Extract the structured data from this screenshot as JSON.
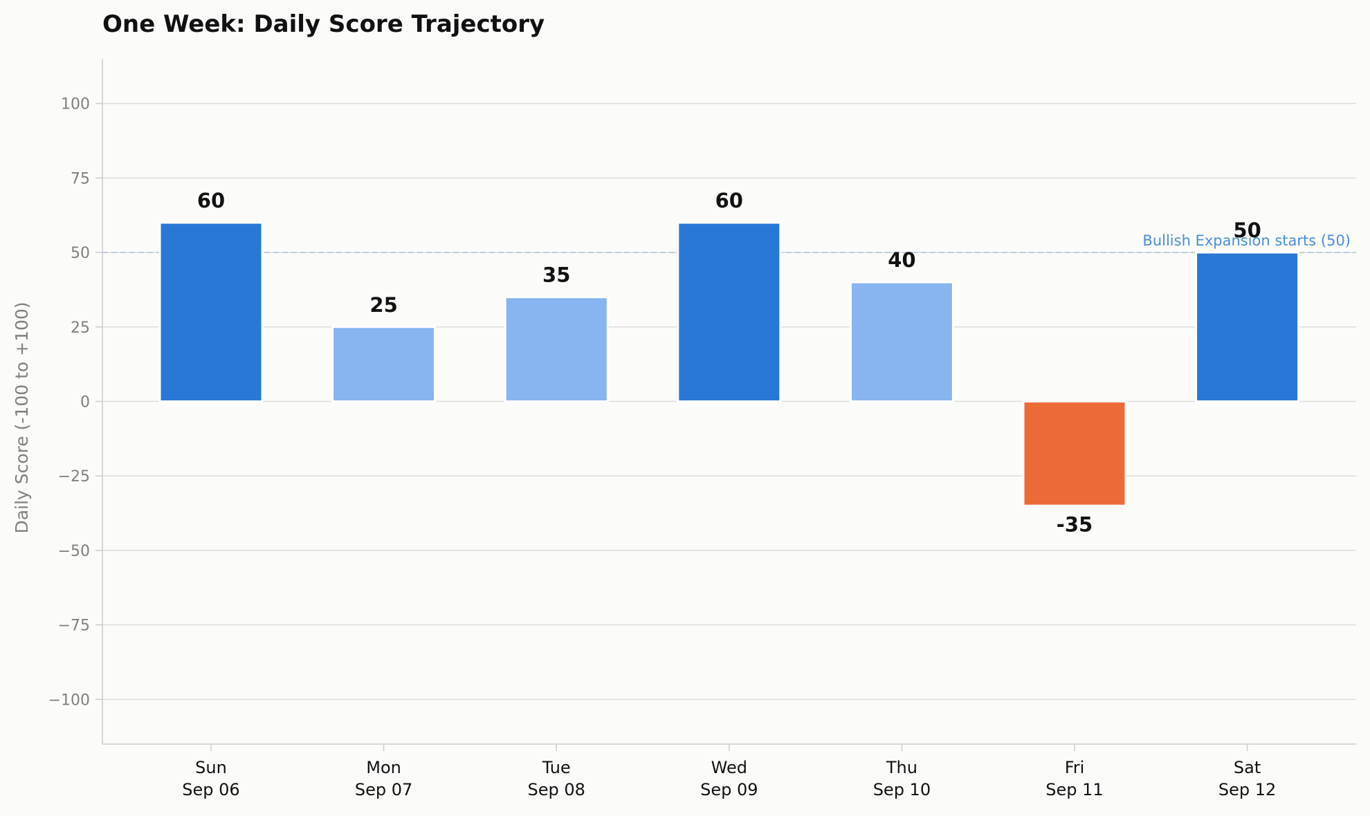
{
  "chart_data": {
    "type": "bar",
    "title": "One Week: Daily Score Trajectory",
    "ylabel": "Daily Score (-100 to +100)",
    "xlabel": "",
    "ylim": [
      -115,
      115
    ],
    "yticks": [
      100,
      75,
      50,
      25,
      0,
      -25,
      -50,
      -75,
      -100
    ],
    "ytick_labels": [
      "100",
      "75",
      "50",
      "25",
      "0",
      "−25",
      "−50",
      "−75",
      "−100"
    ],
    "categories": [
      {
        "day": "Sun",
        "date": "Sep 06"
      },
      {
        "day": "Mon",
        "date": "Sep 07"
      },
      {
        "day": "Tue",
        "date": "Sep 08"
      },
      {
        "day": "Wed",
        "date": "Sep 09"
      },
      {
        "day": "Thu",
        "date": "Sep 10"
      },
      {
        "day": "Fri",
        "date": "Sep 11"
      },
      {
        "day": "Sat",
        "date": "Sep 12"
      }
    ],
    "values": [
      60,
      25,
      35,
      60,
      40,
      -35,
      50
    ],
    "value_labels": [
      "60",
      "25",
      "35",
      "60",
      "40",
      "-35",
      "50"
    ],
    "bar_colors": [
      "#2a78d6",
      "#86b5ef",
      "#86b5ef",
      "#2a78d6",
      "#86b5ef",
      "#eb6a37",
      "#2a78d6"
    ],
    "reference_line": {
      "value": 50,
      "label": "Bullish Expansion starts (50)",
      "color": "#4a8fd8"
    },
    "grid": true,
    "legend": "none"
  },
  "colors": {
    "background": "#fbfbf9",
    "grid": "#dcdcdc",
    "axis": "#cccccc",
    "tick_text": "#808080"
  }
}
